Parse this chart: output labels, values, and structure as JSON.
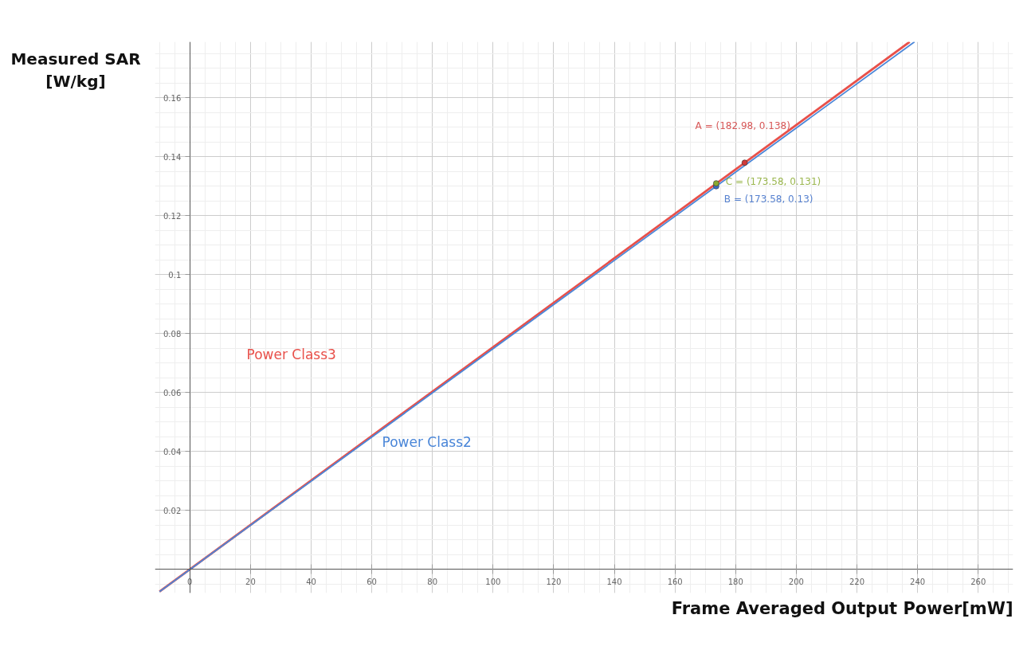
{
  "chart_data": {
    "type": "line",
    "xlabel": "Frame Averaged Output Power[mW]",
    "ylabel": "Measured SAR\n[W/kg]",
    "xlim": [
      -11.5,
      271.5
    ],
    "ylim": [
      -0.008,
      0.179
    ],
    "xticks": [
      0,
      20,
      40,
      60,
      80,
      100,
      120,
      140,
      160,
      180,
      200,
      220,
      240,
      260
    ],
    "yticks": [
      0.02,
      0.04,
      0.06,
      0.08,
      0.1,
      0.12,
      0.14,
      0.16
    ],
    "grid": true,
    "legend": false,
    "marker": "none",
    "line_style": "solid",
    "series": [
      {
        "name": "Power Class3",
        "color": "#e8504a",
        "x": [
          -10,
          237.4
        ],
        "values": [
          -0.0075,
          0.179
        ]
      },
      {
        "name": "Power Class2",
        "color": "#4a86d8",
        "x": [
          -10,
          239.0
        ],
        "values": [
          -0.0075,
          0.179
        ]
      },
      {
        "name": "A = (182.98, 0.138)",
        "type": "scatter",
        "marker": "circle",
        "color": "#d03a3a",
        "x": [
          182.98
        ],
        "values": [
          0.138
        ]
      },
      {
        "name": "B = (173.58, 0.13)",
        "type": "scatter",
        "marker": "circle",
        "color": "#3a6cc8",
        "x": [
          173.58
        ],
        "values": [
          0.13
        ]
      },
      {
        "name": "C = (173.58, 0.131)",
        "type": "scatter",
        "marker": "circle",
        "color": "#8aaa30",
        "x": [
          173.58
        ],
        "values": [
          0.131
        ]
      }
    ]
  }
}
